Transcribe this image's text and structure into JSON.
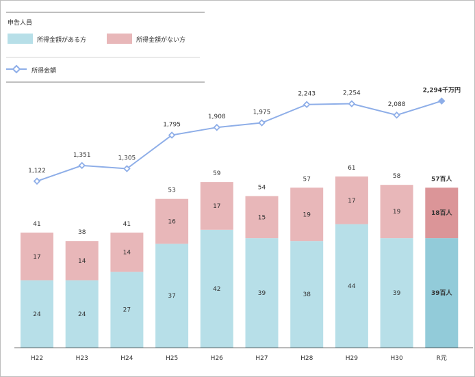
{
  "legend": {
    "title": "申告人員",
    "items": [
      {
        "label": "所得金額がある方",
        "color": "#b7dfe8"
      },
      {
        "label": "所得金額がない方",
        "color": "#e8b7b9"
      }
    ],
    "line_label": "所得金額"
  },
  "chart_data": {
    "type": "bar",
    "categories": [
      "H22",
      "H23",
      "H24",
      "H25",
      "H26",
      "H27",
      "H28",
      "H29",
      "H30",
      "R元"
    ],
    "series": [
      {
        "name": "所得金額がある方",
        "values": [
          24,
          24,
          27,
          37,
          42,
          39,
          38,
          44,
          39,
          39
        ],
        "color": "#b7dfe8",
        "highlight_color": "#92cbd9"
      },
      {
        "name": "所得金額がない方",
        "values": [
          17,
          14,
          14,
          16,
          17,
          15,
          19,
          17,
          19,
          18
        ],
        "color": "#e8b7b9",
        "highlight_color": "#db9598"
      }
    ],
    "bar_labels": {
      "bottom": [
        "24",
        "24",
        "27",
        "37",
        "42",
        "39",
        "38",
        "44",
        "39",
        "39百人"
      ],
      "top": [
        "17",
        "14",
        "14",
        "16",
        "17",
        "15",
        "19",
        "17",
        "19",
        "18百人"
      ],
      "total": [
        "41",
        "38",
        "41",
        "53",
        "59",
        "54",
        "57",
        "61",
        "58",
        "57百人"
      ]
    },
    "line": {
      "name": "所得金額",
      "values": [
        1122,
        1351,
        1305,
        1795,
        1908,
        1975,
        2243,
        2254,
        2088,
        2294
      ],
      "labels": [
        "1,122",
        "1,351",
        "1,305",
        "1,795",
        "1,908",
        "1,975",
        "2,243",
        "2,254",
        "2,088",
        "2,294千万円"
      ],
      "color": "#8eaee8"
    },
    "highlight_index": 9
  }
}
